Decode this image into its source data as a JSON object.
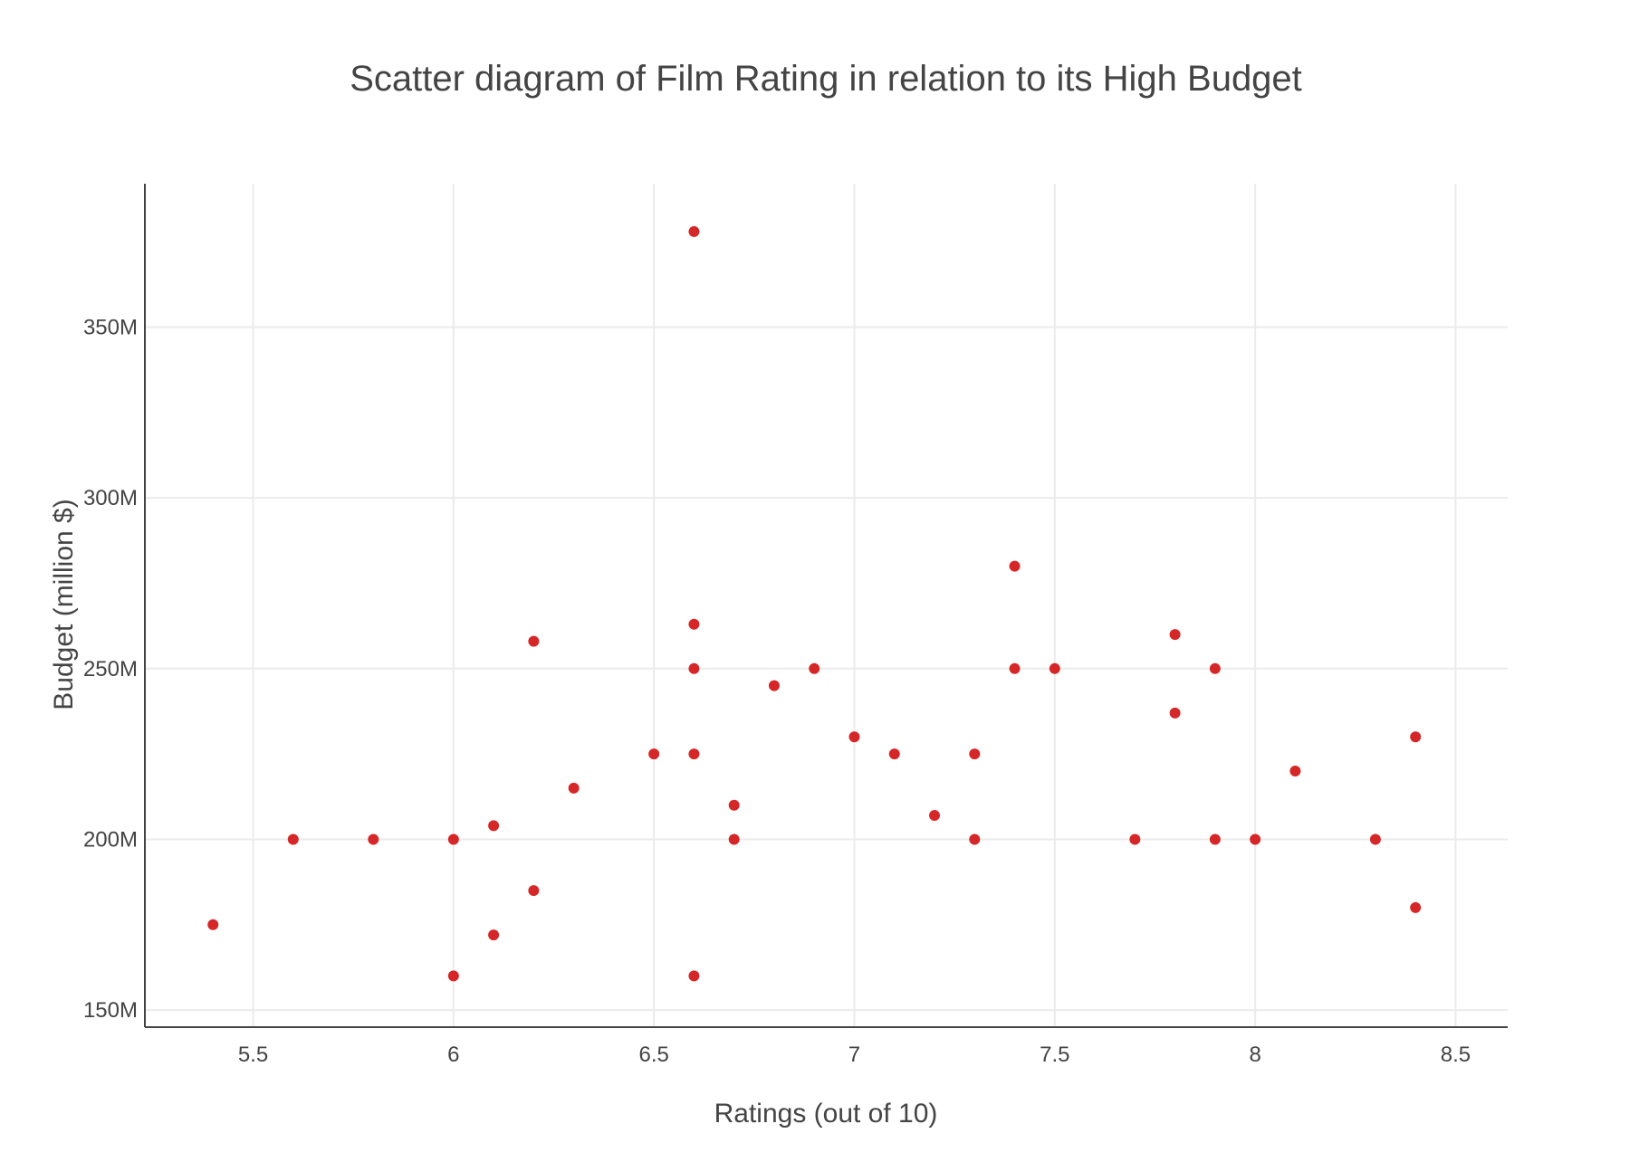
{
  "chart_data": {
    "type": "scatter",
    "title": "Scatter diagram of Film Rating in relation to its High Budget",
    "xlabel": "Ratings (out of 10)",
    "ylabel": "Budget (million $)",
    "xlim": [
      5.23,
      8.63
    ],
    "ylim": [
      145,
      392
    ],
    "x_ticks": [
      5.5,
      6,
      6.5,
      7,
      7.5,
      8,
      8.5
    ],
    "x_tick_labels": [
      "5.5",
      "6",
      "6.5",
      "7",
      "7.5",
      "8",
      "8.5"
    ],
    "y_ticks": [
      150,
      200,
      250,
      300,
      350
    ],
    "y_tick_labels": [
      "150M",
      "200M",
      "250M",
      "300M",
      "350M"
    ],
    "grid": true,
    "marker_color": "#d62728",
    "series": [
      {
        "points": [
          {
            "x": 5.4,
            "y": 175
          },
          {
            "x": 5.6,
            "y": 200
          },
          {
            "x": 5.8,
            "y": 200
          },
          {
            "x": 6.0,
            "y": 200
          },
          {
            "x": 6.0,
            "y": 160
          },
          {
            "x": 6.1,
            "y": 204
          },
          {
            "x": 6.1,
            "y": 172
          },
          {
            "x": 6.2,
            "y": 258
          },
          {
            "x": 6.2,
            "y": 185
          },
          {
            "x": 6.3,
            "y": 215
          },
          {
            "x": 6.5,
            "y": 225
          },
          {
            "x": 6.6,
            "y": 378
          },
          {
            "x": 6.6,
            "y": 263
          },
          {
            "x": 6.6,
            "y": 250
          },
          {
            "x": 6.6,
            "y": 225
          },
          {
            "x": 6.6,
            "y": 160
          },
          {
            "x": 6.7,
            "y": 210
          },
          {
            "x": 6.7,
            "y": 200
          },
          {
            "x": 6.8,
            "y": 245
          },
          {
            "x": 6.9,
            "y": 250
          },
          {
            "x": 7.0,
            "y": 230
          },
          {
            "x": 7.1,
            "y": 225
          },
          {
            "x": 7.2,
            "y": 207
          },
          {
            "x": 7.3,
            "y": 225
          },
          {
            "x": 7.3,
            "y": 200
          },
          {
            "x": 7.4,
            "y": 280
          },
          {
            "x": 7.4,
            "y": 250
          },
          {
            "x": 7.5,
            "y": 250
          },
          {
            "x": 7.7,
            "y": 200
          },
          {
            "x": 7.8,
            "y": 260
          },
          {
            "x": 7.8,
            "y": 237
          },
          {
            "x": 7.9,
            "y": 250
          },
          {
            "x": 7.9,
            "y": 200
          },
          {
            "x": 8.0,
            "y": 200
          },
          {
            "x": 8.1,
            "y": 220
          },
          {
            "x": 8.3,
            "y": 200
          },
          {
            "x": 8.4,
            "y": 230
          },
          {
            "x": 8.4,
            "y": 180
          }
        ]
      }
    ]
  }
}
